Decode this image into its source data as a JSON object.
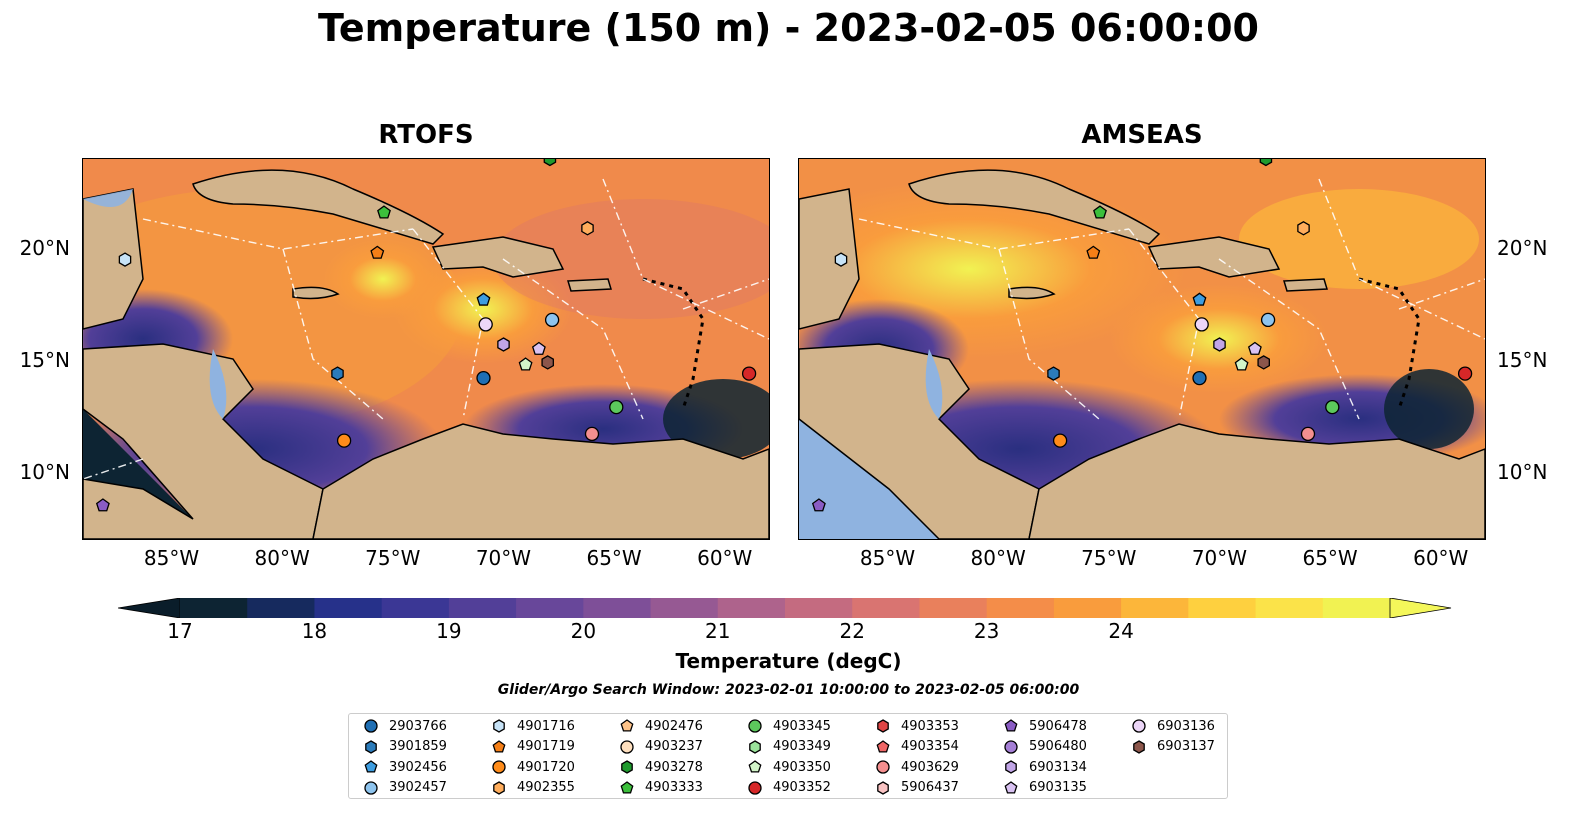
{
  "title": "Temperature (150 m) - 2023-02-05 06:00:00",
  "panels": [
    {
      "title": "RTOFS"
    },
    {
      "title": "AMSEAS"
    }
  ],
  "x_ticks": [
    "85°W",
    "80°W",
    "75°W",
    "70°W",
    "65°W",
    "60°W"
  ],
  "y_ticks": [
    "20°N",
    "15°N",
    "10°N"
  ],
  "colorbar": {
    "label": "Temperature (degC)",
    "ticks": [
      "17",
      "18",
      "19",
      "20",
      "21",
      "22",
      "23",
      "24"
    ],
    "colors": [
      "#0d2433",
      "#162a5e",
      "#26318a",
      "#3b3795",
      "#523f98",
      "#68479a",
      "#7e4f98",
      "#965993",
      "#ae638c",
      "#c46b80",
      "#d97471",
      "#e9805c",
      "#f48d49",
      "#f99c3d",
      "#fcb63a",
      "#fed03f",
      "#fbe349",
      "#f1f252"
    ]
  },
  "subtitle": "Glider/Argo Search Window: 2023-02-01 10:00:00 to 2023-02-05 06:00:00",
  "legend": [
    {
      "label": "2903766",
      "marker": "circle",
      "color": "#1f6fb4"
    },
    {
      "label": "3901859",
      "marker": "hexagon",
      "color": "#2b7bba"
    },
    {
      "label": "3902456",
      "marker": "pentagon",
      "color": "#3d9de0"
    },
    {
      "label": "3902457",
      "marker": "circle",
      "color": "#8ec4ee"
    },
    {
      "label": "4901716",
      "marker": "hexagon",
      "color": "#c7e3f7"
    },
    {
      "label": "4901719",
      "marker": "pentagon",
      "color": "#f57f17"
    },
    {
      "label": "4901720",
      "marker": "circle",
      "color": "#ff8c1a"
    },
    {
      "label": "4902355",
      "marker": "hexagon",
      "color": "#ffad5c"
    },
    {
      "label": "4902476",
      "marker": "pentagon",
      "color": "#ffc48a"
    },
    {
      "label": "4903237",
      "marker": "circle",
      "color": "#ffe0bf"
    },
    {
      "label": "4903278",
      "marker": "hexagon",
      "color": "#1f9a2e"
    },
    {
      "label": "4903333",
      "marker": "pentagon",
      "color": "#3cbf3c"
    },
    {
      "label": "4903345",
      "marker": "circle",
      "color": "#5cc95c"
    },
    {
      "label": "4903349",
      "marker": "hexagon",
      "color": "#9be39b"
    },
    {
      "label": "4903350",
      "marker": "pentagon",
      "color": "#d3f5c9"
    },
    {
      "label": "4903352",
      "marker": "circle",
      "color": "#d62728"
    },
    {
      "label": "4903353",
      "marker": "hexagon",
      "color": "#e04545"
    },
    {
      "label": "4903354",
      "marker": "pentagon",
      "color": "#ef6666"
    },
    {
      "label": "4903629",
      "marker": "circle",
      "color": "#f48f8f"
    },
    {
      "label": "5906437",
      "marker": "hexagon",
      "color": "#f9c3c3"
    },
    {
      "label": "5906478",
      "marker": "pentagon",
      "color": "#8a5cc4"
    },
    {
      "label": "5906480",
      "marker": "circle",
      "color": "#a57fd6"
    },
    {
      "label": "6903134",
      "marker": "hexagon",
      "color": "#c1a5e6"
    },
    {
      "label": "6903135",
      "marker": "pentagon",
      "color": "#d9c2f2"
    },
    {
      "label": "6903136",
      "marker": "circle",
      "color": "#ecd6f7"
    },
    {
      "label": "6903137",
      "marker": "hexagon",
      "color": "#8c564b"
    }
  ],
  "chart_data": {
    "type": "heatmap",
    "extent": {
      "lon": [
        -89,
        -58
      ],
      "lat": [
        7,
        24
      ]
    },
    "observations": [
      {
        "id": "2903766",
        "lon": -70.9,
        "lat": 14.2
      },
      {
        "id": "3901859",
        "lon": -77.5,
        "lat": 14.4
      },
      {
        "id": "3902456",
        "lon": -70.9,
        "lat": 17.7
      },
      {
        "id": "3902457",
        "lon": -67.8,
        "lat": 16.8
      },
      {
        "id": "4901716",
        "lon": -87.1,
        "lat": 19.5
      },
      {
        "id": "4901719",
        "lon": -75.7,
        "lat": 19.8
      },
      {
        "id": "4901720",
        "lon": -77.2,
        "lat": 11.4
      },
      {
        "id": "4902355",
        "lon": -66.2,
        "lat": 20.9
      },
      {
        "id": "4903278",
        "lon": -67.9,
        "lat": 24.0
      },
      {
        "id": "4903333",
        "lon": -75.4,
        "lat": 21.6
      },
      {
        "id": "4903345",
        "lon": -64.9,
        "lat": 12.9
      },
      {
        "id": "4903350",
        "lon": -69.0,
        "lat": 14.8
      },
      {
        "id": "4903352",
        "lon": -58.9,
        "lat": 14.4
      },
      {
        "id": "4903629",
        "lon": -66.0,
        "lat": 11.7
      },
      {
        "id": "5906478",
        "lon": -88.1,
        "lat": 8.5
      },
      {
        "id": "6903134",
        "lon": -70.0,
        "lat": 15.7
      },
      {
        "id": "6903135",
        "lon": -68.4,
        "lat": 15.5
      },
      {
        "id": "6903136",
        "lon": -70.8,
        "lat": 16.6
      },
      {
        "id": "6903137",
        "lon": -68.0,
        "lat": 14.9
      }
    ]
  }
}
